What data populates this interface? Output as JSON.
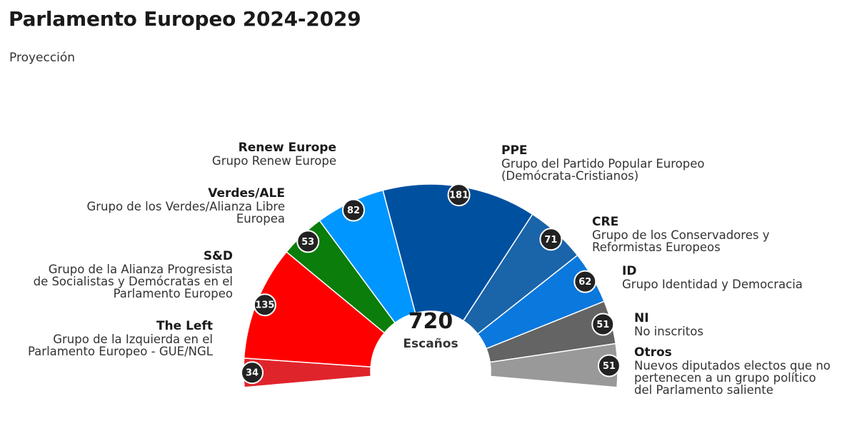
{
  "header": {
    "title": "Parlamento Europeo 2024-2029",
    "subtitle": "Proyección"
  },
  "chart_data": {
    "type": "pie",
    "style": "hemicycle",
    "total": "720",
    "total_label": "Escaños",
    "groups": [
      {
        "name": "The Left",
        "description": [
          "Grupo de la Izquierda en el",
          "Parlamento Europeo - GUE/NGL"
        ],
        "seats": 34,
        "color": "#e0242b"
      },
      {
        "name": "S&D",
        "description": [
          "Grupo de la Alianza Progresista",
          "de Socialistas y Demócratas en el",
          "Parlamento Europeo"
        ],
        "seats": 135,
        "color": "#ff0000"
      },
      {
        "name": "Verdes/ALE",
        "description": [
          "Grupo de los Verdes/Alianza Libre",
          "Europea"
        ],
        "seats": 53,
        "color": "#0a7d0a"
      },
      {
        "name": "Renew Europe",
        "description": [
          "Grupo Renew Europe"
        ],
        "seats": 82,
        "color": "#0096ff"
      },
      {
        "name": "PPE",
        "description": [
          "Grupo del Partido Popular Europeo",
          "(Demócrata-Cristianos)"
        ],
        "seats": 181,
        "color": "#0050a0"
      },
      {
        "name": "CRE",
        "description": [
          "Grupo de los Conservadores y",
          "Reformistas Europeos"
        ],
        "seats": 71,
        "color": "#1a64aa"
      },
      {
        "name": "ID",
        "description": [
          "Grupo Identidad y Democracia"
        ],
        "seats": 62,
        "color": "#0a78dc"
      },
      {
        "name": "NI",
        "description": [
          "No inscritos"
        ],
        "seats": 51,
        "color": "#646464"
      },
      {
        "name": "Otros",
        "description": [
          "Nuevos diputados electos que no",
          "pertenecen a un grupo político",
          "del Parlamento saliente"
        ],
        "seats": 51,
        "color": "#999999"
      }
    ]
  }
}
